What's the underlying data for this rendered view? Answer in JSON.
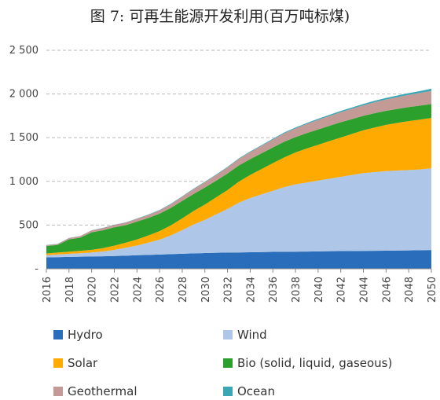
{
  "chart_data": {
    "type": "area",
    "stacked": true,
    "title": "图 7: 可再生能源开发利用(百万吨标煤)",
    "xlabel": "",
    "ylabel": "",
    "ylim": [
      0,
      2500
    ],
    "yticks": [
      0,
      500,
      1000,
      1500,
      2000,
      2500
    ],
    "ytick_labels": [
      "-",
      "500",
      "1 000",
      "1 500",
      "2 000",
      "2 500"
    ],
    "x": [
      2016,
      2017,
      2018,
      2019,
      2020,
      2021,
      2022,
      2023,
      2024,
      2025,
      2026,
      2027,
      2028,
      2029,
      2030,
      2031,
      2032,
      2033,
      2034,
      2035,
      2036,
      2037,
      2038,
      2039,
      2040,
      2041,
      2042,
      2043,
      2044,
      2045,
      2046,
      2047,
      2048,
      2049,
      2050
    ],
    "xticks": [
      2016,
      2018,
      2020,
      2022,
      2024,
      2026,
      2028,
      2030,
      2032,
      2034,
      2036,
      2038,
      2040,
      2042,
      2044,
      2046,
      2048,
      2050
    ],
    "grid": "horizontal-dashed",
    "legend_position": "bottom",
    "series": [
      {
        "name": "Hydro",
        "color": "#2a6ebb",
        "values": [
          130,
          133,
          136,
          138,
          140,
          143,
          146,
          150,
          155,
          159,
          163,
          167,
          172,
          176,
          180,
          183,
          185,
          187,
          189,
          191,
          193,
          194,
          196,
          197,
          199,
          201,
          202,
          203,
          205,
          206,
          207,
          209,
          210,
          212,
          215
        ]
      },
      {
        "name": "Wind",
        "color": "#aec7e8",
        "values": [
          25,
          30,
          35,
          40,
          45,
          55,
          70,
          90,
          110,
          140,
          170,
          215,
          270,
          330,
          380,
          440,
          500,
          570,
          620,
          660,
          700,
          740,
          770,
          790,
          810,
          830,
          850,
          870,
          890,
          900,
          910,
          915,
          920,
          925,
          935
        ]
      },
      {
        "name": "Solar",
        "color": "#ffaa00",
        "values": [
          20,
          22,
          25,
          28,
          32,
          38,
          48,
          58,
          70,
          82,
          98,
          115,
          135,
          155,
          175,
          195,
          215,
          240,
          265,
          290,
          315,
          340,
          365,
          390,
          410,
          430,
          450,
          470,
          490,
          510,
          530,
          545,
          560,
          570,
          575
        ]
      },
      {
        "name": "Bio (solid, liquid, gaseous)",
        "color": "#2ca02c",
        "values": [
          85,
          88,
          140,
          150,
          200,
          205,
          210,
          200,
          205,
          200,
          200,
          200,
          200,
          195,
          195,
          190,
          190,
          185,
          180,
          180,
          180,
          180,
          175,
          175,
          175,
          175,
          175,
          170,
          165,
          165,
          160,
          160,
          160,
          160,
          160
        ]
      },
      {
        "name": "Geothermal",
        "color": "#c49a96",
        "values": [
          10,
          10,
          15,
          18,
          22,
          25,
          28,
          30,
          32,
          35,
          38,
          42,
          48,
          55,
          60,
          65,
          70,
          75,
          80,
          85,
          90,
          95,
          100,
          105,
          110,
          112,
          115,
          118,
          120,
          125,
          130,
          135,
          140,
          145,
          150
        ]
      },
      {
        "name": "Ocean",
        "color": "#3ba7b5",
        "values": [
          2,
          2,
          2,
          2,
          2,
          3,
          3,
          3,
          4,
          4,
          4,
          5,
          5,
          5,
          6,
          6,
          7,
          7,
          8,
          8,
          9,
          10,
          10,
          11,
          12,
          13,
          14,
          15,
          16,
          17,
          18,
          19,
          20,
          21,
          25
        ]
      }
    ]
  },
  "legend": {
    "hydro": "Hydro",
    "wind": "Wind",
    "solar": "Solar",
    "bio": "Bio (solid, liquid, gaseous)",
    "geothermal": "Geothermal",
    "ocean": "Ocean"
  }
}
